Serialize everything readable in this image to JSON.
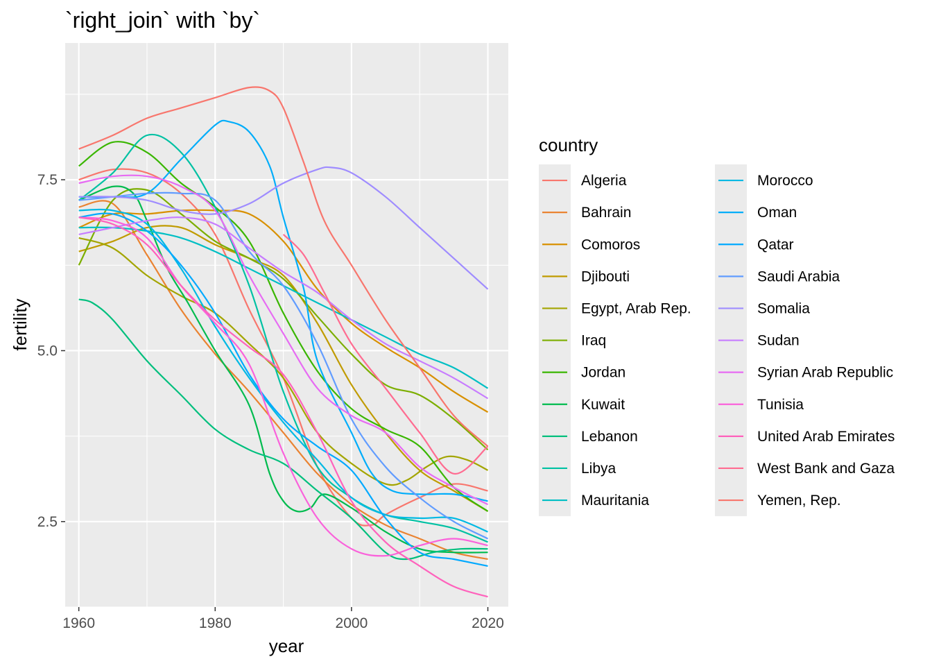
{
  "chart_data": {
    "type": "line",
    "title": "`right_join` with `by`",
    "xlabel": "year",
    "ylabel": "fertility",
    "xlim": [
      1958,
      2023
    ],
    "ylim": [
      1.25,
      9.5
    ],
    "x_ticks": [
      1960,
      1980,
      2000,
      2020
    ],
    "y_ticks": [
      2.5,
      5.0,
      7.5
    ],
    "y_tick_labels": [
      "2.5",
      "5.0",
      "7.5"
    ],
    "grid": true,
    "legend_title": "country",
    "legend_position": "right",
    "series": [
      {
        "name": "Algeria",
        "color": "#F8766D",
        "x": [
          1960,
          1965,
          1970,
          1975,
          1980,
          1985,
          1990,
          1995,
          2000,
          2003,
          2005,
          2010,
          2015,
          2020
        ],
        "y": [
          7.5,
          7.65,
          7.6,
          7.3,
          6.7,
          5.6,
          4.6,
          3.3,
          2.55,
          2.45,
          2.6,
          2.85,
          3.05,
          2.95
        ]
      },
      {
        "name": "Bahrain",
        "color": "#EA8331",
        "x": [
          1960,
          1965,
          1970,
          1975,
          1980,
          1985,
          1990,
          1995,
          2000,
          2005,
          2010,
          2015,
          2020
        ],
        "y": [
          7.1,
          7.15,
          6.4,
          5.6,
          4.95,
          4.4,
          3.8,
          3.2,
          2.75,
          2.45,
          2.25,
          2.05,
          1.95
        ]
      },
      {
        "name": "Comoros",
        "color": "#D89000",
        "x": [
          1960,
          1965,
          1970,
          1975,
          1980,
          1985,
          1990,
          1995,
          2000,
          2005,
          2010,
          2015,
          2020
        ],
        "y": [
          6.8,
          7.0,
          7.0,
          7.05,
          7.05,
          7.0,
          6.6,
          5.9,
          5.4,
          5.05,
          4.75,
          4.4,
          4.1
        ]
      },
      {
        "name": "Djibouti",
        "color": "#C09B00",
        "x": [
          1960,
          1965,
          1970,
          1975,
          1980,
          1985,
          1990,
          1995,
          2000,
          2005,
          2010,
          2015,
          2020
        ],
        "y": [
          6.45,
          6.6,
          6.8,
          6.8,
          6.55,
          6.35,
          6.1,
          5.4,
          4.5,
          3.8,
          3.25,
          2.95,
          2.65
        ]
      },
      {
        "name": "Egypt, Arab Rep.",
        "color": "#A3A500",
        "x": [
          1960,
          1965,
          1970,
          1975,
          1980,
          1985,
          1990,
          1995,
          2000,
          2005,
          2008,
          2011,
          2014,
          2017,
          2020
        ],
        "y": [
          6.65,
          6.5,
          6.1,
          5.8,
          5.55,
          5.1,
          4.6,
          3.8,
          3.35,
          3.05,
          3.1,
          3.3,
          3.45,
          3.4,
          3.25
        ]
      },
      {
        "name": "Iraq",
        "color": "#7CAE00",
        "x": [
          1960,
          1965,
          1970,
          1975,
          1980,
          1985,
          1990,
          1995,
          2000,
          2005,
          2010,
          2015,
          2020
        ],
        "y": [
          6.25,
          7.2,
          7.35,
          7.0,
          6.6,
          6.35,
          6.05,
          5.5,
          4.95,
          4.5,
          4.35,
          4.0,
          3.55
        ]
      },
      {
        "name": "Jordan",
        "color": "#39B600",
        "x": [
          1960,
          1965,
          1970,
          1975,
          1980,
          1985,
          1990,
          1995,
          2000,
          2005,
          2010,
          2015,
          2020
        ],
        "y": [
          7.7,
          8.05,
          7.9,
          7.45,
          7.1,
          6.6,
          5.55,
          4.7,
          4.15,
          3.85,
          3.6,
          3.0,
          2.65
        ]
      },
      {
        "name": "Kuwait",
        "color": "#00BB4E",
        "x": [
          1960,
          1965,
          1968,
          1970,
          1973,
          1976,
          1980,
          1985,
          1988,
          1990,
          1992,
          1994,
          1996,
          2000,
          2005,
          2010,
          2015,
          2020
        ],
        "y": [
          7.2,
          7.4,
          7.3,
          6.9,
          6.2,
          5.7,
          5.0,
          4.2,
          3.2,
          2.8,
          2.65,
          2.7,
          2.9,
          2.7,
          2.35,
          2.1,
          2.05,
          2.05
        ]
      },
      {
        "name": "Lebanon",
        "color": "#00BF7D",
        "x": [
          1960,
          1962,
          1965,
          1970,
          1975,
          1980,
          1985,
          1990,
          1995,
          2000,
          2005,
          2008,
          2012,
          2016,
          2020
        ],
        "y": [
          5.75,
          5.7,
          5.45,
          4.85,
          4.35,
          3.85,
          3.55,
          3.35,
          2.95,
          2.55,
          2.05,
          1.95,
          2.05,
          2.1,
          2.1
        ]
      },
      {
        "name": "Libya",
        "color": "#00C1A3",
        "x": [
          1960,
          1965,
          1970,
          1975,
          1980,
          1985,
          1990,
          1995,
          2000,
          2005,
          2010,
          2015,
          2020
        ],
        "y": [
          7.2,
          7.6,
          8.15,
          7.9,
          7.1,
          5.95,
          4.4,
          3.3,
          2.85,
          2.6,
          2.5,
          2.4,
          2.2
        ]
      },
      {
        "name": "Mauritania",
        "color": "#00BFC4",
        "x": [
          1960,
          1965,
          1970,
          1975,
          1980,
          1985,
          1990,
          1995,
          2000,
          2005,
          2010,
          2015,
          2020
        ],
        "y": [
          6.8,
          6.8,
          6.75,
          6.65,
          6.45,
          6.2,
          5.95,
          5.7,
          5.45,
          5.2,
          4.95,
          4.75,
          4.45
        ]
      },
      {
        "name": "Morocco",
        "color": "#00B9E3",
        "x": [
          1960,
          1965,
          1970,
          1975,
          1980,
          1985,
          1990,
          1995,
          2000,
          2005,
          2010,
          2015,
          2020
        ],
        "y": [
          7.05,
          7.05,
          6.85,
          6.2,
          5.35,
          4.6,
          3.95,
          3.4,
          2.85,
          2.6,
          2.55,
          2.55,
          2.35
        ]
      },
      {
        "name": "Oman",
        "color": "#00ADFA",
        "x": [
          1960,
          1965,
          1970,
          1975,
          1980,
          1982,
          1985,
          1988,
          1990,
          1993,
          1995,
          2000,
          2003,
          2006,
          2010,
          2015,
          2020
        ],
        "y": [
          7.25,
          7.25,
          7.3,
          7.8,
          8.3,
          8.35,
          8.2,
          7.7,
          6.95,
          5.9,
          4.85,
          3.8,
          3.2,
          2.95,
          2.9,
          2.9,
          2.8
        ]
      },
      {
        "name": "Qatar",
        "color": "#00A9FF",
        "x": [
          1960,
          1965,
          1970,
          1975,
          1980,
          1985,
          1990,
          1995,
          2000,
          2005,
          2010,
          2015,
          2020
        ],
        "y": [
          6.95,
          7.0,
          6.75,
          6.25,
          5.55,
          4.65,
          4.0,
          3.6,
          3.25,
          2.55,
          2.05,
          1.95,
          1.85
        ]
      },
      {
        "name": "Saudi Arabia",
        "color": "#619CFF",
        "x": [
          1960,
          1965,
          1970,
          1975,
          1980,
          1985,
          1990,
          1995,
          2000,
          2005,
          2010,
          2015,
          2020
        ],
        "y": [
          7.2,
          7.25,
          7.3,
          7.3,
          7.2,
          6.45,
          5.95,
          5.1,
          4.0,
          3.3,
          2.85,
          2.5,
          2.25
        ]
      },
      {
        "name": "Somalia",
        "color": "#9F8CFF",
        "x": [
          1960,
          1965,
          1970,
          1975,
          1980,
          1985,
          1990,
          1995,
          1997,
          2000,
          2005,
          2010,
          2015,
          2020
        ],
        "y": [
          7.25,
          7.25,
          7.2,
          7.05,
          7.0,
          7.15,
          7.45,
          7.65,
          7.68,
          7.6,
          7.25,
          6.8,
          6.35,
          5.9
        ]
      },
      {
        "name": "Sudan",
        "color": "#C77CFF",
        "x": [
          1960,
          1965,
          1970,
          1975,
          1980,
          1985,
          1990,
          1995,
          2000,
          2005,
          2010,
          2015,
          2020
        ],
        "y": [
          6.7,
          6.8,
          6.9,
          6.95,
          6.85,
          6.5,
          6.15,
          5.85,
          5.45,
          5.1,
          4.85,
          4.6,
          4.3
        ]
      },
      {
        "name": "Syrian Arab Republic",
        "color": "#E76BF3",
        "x": [
          1960,
          1965,
          1970,
          1975,
          1980,
          1985,
          1990,
          1995,
          2000,
          2005,
          2010,
          2015,
          2020
        ],
        "y": [
          7.45,
          7.55,
          7.55,
          7.4,
          7.05,
          6.1,
          5.25,
          4.45,
          4.05,
          3.8,
          3.3,
          3.0,
          2.75
        ]
      },
      {
        "name": "Tunisia",
        "color": "#FA62DB",
        "x": [
          1960,
          1965,
          1970,
          1975,
          1980,
          1985,
          1990,
          1995,
          2000,
          2005,
          2010,
          2015,
          2020
        ],
        "y": [
          6.95,
          6.9,
          6.65,
          5.95,
          5.4,
          4.8,
          3.5,
          2.55,
          2.1,
          2.0,
          2.15,
          2.25,
          2.15
        ]
      },
      {
        "name": "United Arab Emirates",
        "color": "#FF62BC",
        "x": [
          1960,
          1965,
          1970,
          1975,
          1980,
          1985,
          1990,
          1995,
          2000,
          2005,
          2010,
          2015,
          2020
        ],
        "y": [
          6.95,
          6.85,
          6.55,
          5.95,
          5.45,
          5.05,
          4.65,
          3.8,
          2.8,
          2.2,
          1.85,
          1.55,
          1.4
        ]
      },
      {
        "name": "West Bank and Gaza",
        "color": "#FF6C91",
        "x": [
          1990,
          1993,
          1996,
          2000,
          2005,
          2010,
          2015,
          2020
        ],
        "y": [
          6.7,
          6.4,
          5.85,
          5.1,
          4.45,
          3.8,
          3.2,
          3.6
        ]
      },
      {
        "name": "Yemen, Rep.",
        "color": "#F8766D",
        "x": [
          1960,
          1965,
          1970,
          1975,
          1980,
          1985,
          1988,
          1990,
          1993,
          1996,
          2000,
          2005,
          2010,
          2015,
          2020
        ],
        "y": [
          7.95,
          8.15,
          8.4,
          8.55,
          8.7,
          8.85,
          8.8,
          8.55,
          7.75,
          6.9,
          6.25,
          5.45,
          4.75,
          4.05,
          3.6
        ]
      }
    ]
  }
}
